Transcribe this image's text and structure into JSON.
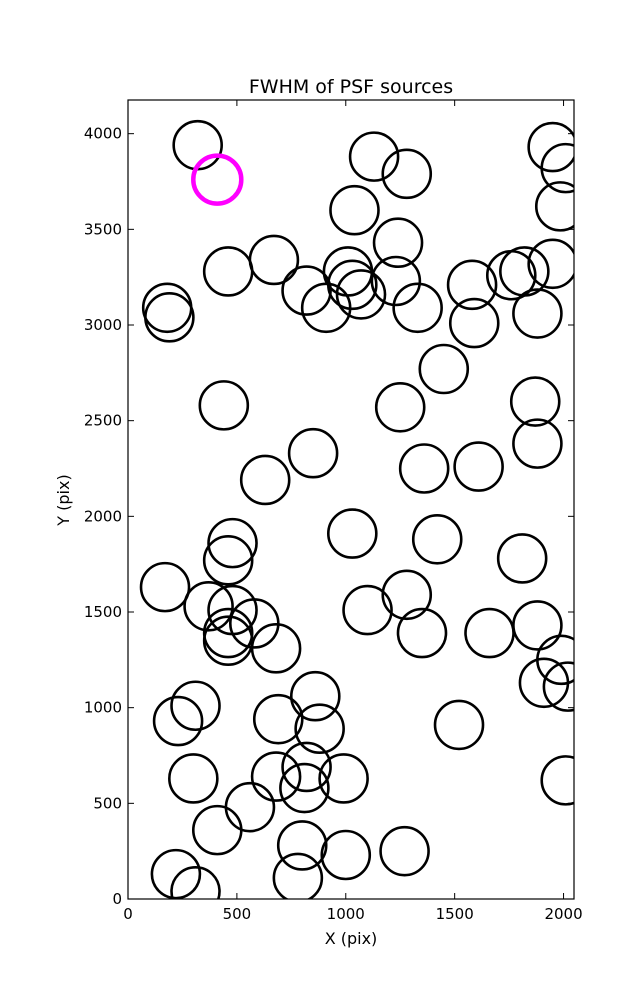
{
  "chart_data": {
    "type": "scatter",
    "title": "FWHM of PSF sources",
    "xlabel": "X (pix)",
    "ylabel": "Y (pix)",
    "xlim": [
      0,
      2048
    ],
    "ylim": [
      0,
      4176
    ],
    "xticks": [
      0,
      500,
      1000,
      1500,
      2000
    ],
    "yticks": [
      0,
      500,
      1000,
      1500,
      2000,
      2500,
      3000,
      3500,
      4000
    ],
    "grid": false,
    "marker_colors": {
      "default": "#000000",
      "highlight": "#ff00ff"
    },
    "series": [
      {
        "marker": "open-circle",
        "points": [
          {
            "x": 320,
            "y": 3940
          },
          {
            "x": 1130,
            "y": 3880
          },
          {
            "x": 1280,
            "y": 3790
          },
          {
            "x": 1040,
            "y": 3600
          },
          {
            "x": 1950,
            "y": 3930
          },
          {
            "x": 2010,
            "y": 3820
          },
          {
            "x": 1985,
            "y": 3620
          },
          {
            "x": 1240,
            "y": 3430
          },
          {
            "x": 670,
            "y": 3340
          },
          {
            "x": 460,
            "y": 3280
          },
          {
            "x": 820,
            "y": 3180
          },
          {
            "x": 910,
            "y": 3090
          },
          {
            "x": 1010,
            "y": 3280
          },
          {
            "x": 1030,
            "y": 3210
          },
          {
            "x": 1070,
            "y": 3160
          },
          {
            "x": 1230,
            "y": 3230
          },
          {
            "x": 1330,
            "y": 3090
          },
          {
            "x": 1580,
            "y": 3210
          },
          {
            "x": 1590,
            "y": 3010
          },
          {
            "x": 1760,
            "y": 3260
          },
          {
            "x": 1820,
            "y": 3280
          },
          {
            "x": 1880,
            "y": 3060
          },
          {
            "x": 1950,
            "y": 3320
          },
          {
            "x": 180,
            "y": 3090
          },
          {
            "x": 190,
            "y": 3040
          },
          {
            "x": 1450,
            "y": 2770
          },
          {
            "x": 440,
            "y": 2580
          },
          {
            "x": 1250,
            "y": 2570
          },
          {
            "x": 1870,
            "y": 2600
          },
          {
            "x": 1880,
            "y": 2380
          },
          {
            "x": 850,
            "y": 2330
          },
          {
            "x": 630,
            "y": 2190
          },
          {
            "x": 1360,
            "y": 2250
          },
          {
            "x": 1610,
            "y": 2260
          },
          {
            "x": 480,
            "y": 1860
          },
          {
            "x": 460,
            "y": 1770
          },
          {
            "x": 1030,
            "y": 1910
          },
          {
            "x": 1420,
            "y": 1880
          },
          {
            "x": 1810,
            "y": 1780
          },
          {
            "x": 170,
            "y": 1630
          },
          {
            "x": 370,
            "y": 1530
          },
          {
            "x": 480,
            "y": 1510
          },
          {
            "x": 580,
            "y": 1440
          },
          {
            "x": 460,
            "y": 1390
          },
          {
            "x": 460,
            "y": 1350
          },
          {
            "x": 680,
            "y": 1310
          },
          {
            "x": 1100,
            "y": 1510
          },
          {
            "x": 1280,
            "y": 1590
          },
          {
            "x": 1350,
            "y": 1390
          },
          {
            "x": 1660,
            "y": 1390
          },
          {
            "x": 1880,
            "y": 1430
          },
          {
            "x": 1990,
            "y": 1250
          },
          {
            "x": 1910,
            "y": 1130
          },
          {
            "x": 2020,
            "y": 1110
          },
          {
            "x": 310,
            "y": 1010
          },
          {
            "x": 230,
            "y": 930
          },
          {
            "x": 690,
            "y": 940
          },
          {
            "x": 860,
            "y": 1060
          },
          {
            "x": 880,
            "y": 890
          },
          {
            "x": 1520,
            "y": 910
          },
          {
            "x": 300,
            "y": 630
          },
          {
            "x": 680,
            "y": 640
          },
          {
            "x": 820,
            "y": 690
          },
          {
            "x": 810,
            "y": 580
          },
          {
            "x": 990,
            "y": 630
          },
          {
            "x": 560,
            "y": 480
          },
          {
            "x": 410,
            "y": 360
          },
          {
            "x": 800,
            "y": 280
          },
          {
            "x": 1000,
            "y": 230
          },
          {
            "x": 1270,
            "y": 250
          },
          {
            "x": 220,
            "y": 130
          },
          {
            "x": 310,
            "y": 40
          },
          {
            "x": 780,
            "y": 110
          },
          {
            "x": 2010,
            "y": 620
          }
        ]
      },
      {
        "marker": "open-circle-highlight",
        "points": [
          {
            "x": 410,
            "y": 3760
          }
        ]
      }
    ]
  }
}
